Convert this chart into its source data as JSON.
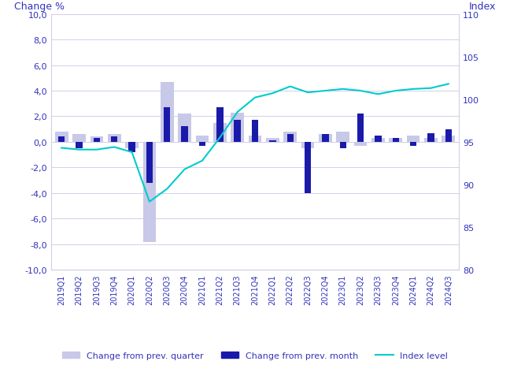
{
  "categories": [
    "2019Q1",
    "2019Q2",
    "2019Q3",
    "2019Q4",
    "2020Q1",
    "2020Q2",
    "2020Q3",
    "2020Q4",
    "2021Q1",
    "2021Q2",
    "2021Q3",
    "2021Q4",
    "2022Q1",
    "2022Q2",
    "2022Q3",
    "2022Q4",
    "2023Q1",
    "2023Q2",
    "2023Q3",
    "2023Q4",
    "2024Q1",
    "2024Q2",
    "2024Q3"
  ],
  "change_prev_month": [
    0.4,
    -0.5,
    0.3,
    0.4,
    -0.8,
    -3.2,
    2.7,
    1.2,
    -0.3,
    2.7,
    1.7,
    1.7,
    0.1,
    0.6,
    -4.0,
    0.6,
    -0.5,
    2.2,
    0.5,
    0.3,
    -0.3,
    0.7,
    1.0
  ],
  "change_prev_quarter": [
    0.8,
    0.6,
    0.4,
    0.6,
    -0.5,
    -7.8,
    4.7,
    2.2,
    0.5,
    1.5,
    2.3,
    0.5,
    0.3,
    0.8,
    -0.5,
    0.6,
    0.8,
    -0.3,
    0.3,
    0.3,
    0.5,
    0.3,
    0.5
  ],
  "index_level": [
    94.3,
    94.1,
    94.1,
    94.4,
    93.8,
    88.0,
    89.5,
    91.8,
    92.8,
    95.5,
    98.5,
    100.2,
    100.7,
    101.5,
    100.8,
    101.0,
    101.2,
    101.0,
    100.6,
    101.0,
    101.2,
    101.3,
    101.8
  ],
  "bar_color_month": "#1a1aaa",
  "bar_color_quarter": "#c8c8e8",
  "line_color": "#00cccc",
  "left_ylim": [
    -10.0,
    10.0
  ],
  "left_yticks": [
    -10.0,
    -8.0,
    -6.0,
    -4.0,
    -2.0,
    0.0,
    2.0,
    4.0,
    6.0,
    8.0,
    10.0
  ],
  "right_ylim": [
    80.0,
    110.0
  ],
  "right_yticks": [
    80,
    85,
    90,
    95,
    100,
    105,
    110
  ],
  "left_ylabel": "Change %",
  "right_ylabel": "Index",
  "axis_color": "#3333bb",
  "background_color": "#ffffff",
  "grid_color": "#d0d0e8",
  "legend_quarter": "Change from prev. quarter",
  "legend_month": "Change from prev. month",
  "legend_line": "Index level"
}
